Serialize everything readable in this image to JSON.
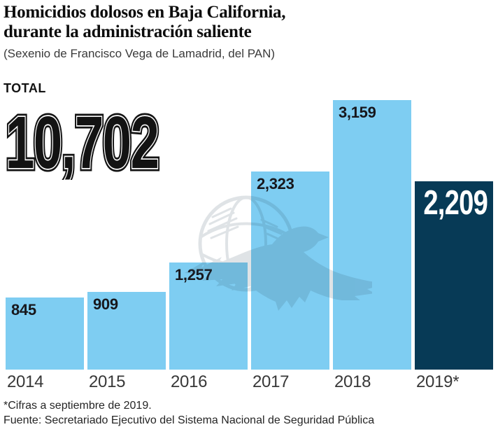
{
  "header": {
    "title_line1": "Homicidios dolosos en Baja California,",
    "title_line2": "durante la administración saliente",
    "subtitle": "(Sexenio de Francisco Vega de Lamadrid, del PAN)"
  },
  "total": {
    "label": "TOTAL",
    "value": "10,702",
    "value_numeric": 10702
  },
  "chart_data": {
    "type": "bar",
    "title": "Homicidios dolosos en Baja California, durante la administración saliente",
    "subtitle": "(Sexenio de Francisco Vega de Lamadrid, del PAN)",
    "categories": [
      "2014",
      "2015",
      "2016",
      "2017",
      "2018",
      "2019*"
    ],
    "values": [
      845,
      909,
      1257,
      2323,
      3159,
      2209
    ],
    "value_labels": [
      "845",
      "909",
      "1,257",
      "2,323",
      "3,159",
      "2,209"
    ],
    "total": 10702,
    "ylim": [
      0,
      3159
    ],
    "grid": false,
    "legend": false,
    "highlight_index": 5,
    "colors": {
      "bar_default": "#7ecdf2",
      "bar_highlight": "#073a56",
      "value_label_on_light": "#17171c",
      "value_label_on_dark": "#ffffff"
    }
  },
  "watermark": {
    "name": "eagle-globe-logo",
    "color": "#2d4b5f",
    "opacity": 0.15
  },
  "footer": {
    "note": "*Cifras a septiembre de 2019.",
    "source": "Fuente: Secretariado Ejecutivo del Sistema Nacional de Seguridad Pública"
  }
}
